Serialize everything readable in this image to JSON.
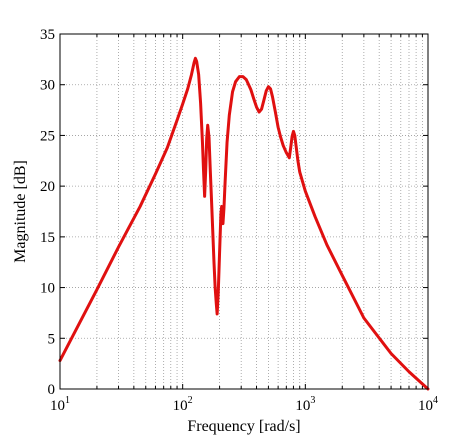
{
  "chart_data": {
    "type": "line",
    "title": "",
    "xlabel": "Frequency [rad/s]",
    "ylabel": "Magnitude [dB]",
    "xscale": "log",
    "xlim": [
      10,
      10000
    ],
    "ylim": [
      0,
      35
    ],
    "grid": true,
    "grid_style": "dotted",
    "x_ticks": [
      {
        "base": "10",
        "exp": "1"
      },
      {
        "base": "10",
        "exp": "2"
      },
      {
        "base": "10",
        "exp": "3"
      },
      {
        "base": "10",
        "exp": "4"
      }
    ],
    "y_ticks": [
      "0",
      "5",
      "10",
      "15",
      "20",
      "25",
      "30",
      "35"
    ],
    "series": [
      {
        "color": "#e01010",
        "x": [
          10,
          14,
          20,
          30,
          45,
          60,
          75,
          90,
          100,
          110,
          118,
          124,
          127,
          130,
          135,
          140,
          145,
          148,
          151,
          154,
          157,
          160,
          164,
          168,
          172,
          176,
          180,
          184,
          188,
          191,
          195,
          200,
          205,
          208,
          210,
          213,
          217,
          222,
          230,
          240,
          255,
          270,
          290,
          310,
          330,
          345,
          360,
          380,
          400,
          420,
          440,
          460,
          480,
          500,
          520,
          540,
          570,
          600,
          630,
          660,
          700,
          740,
          760,
          780,
          800,
          820,
          840,
          870,
          900,
          1000,
          1200,
          1500,
          2000,
          3000,
          5000,
          7000,
          10000
        ],
        "y": [
          2.8,
          6.2,
          9.8,
          14.0,
          18.0,
          21.2,
          23.8,
          26.5,
          28.1,
          29.6,
          31.0,
          32.2,
          32.6,
          32.3,
          31.0,
          28.2,
          24.3,
          21.5,
          19.0,
          21.5,
          24.7,
          26.0,
          24.8,
          21.5,
          18.5,
          15.5,
          12.5,
          10.0,
          8.4,
          7.4,
          9.5,
          13.5,
          17.3,
          18.0,
          17.0,
          16.3,
          17.8,
          20.5,
          24.3,
          27.0,
          29.3,
          30.3,
          30.8,
          30.8,
          30.5,
          30.0,
          29.5,
          28.6,
          27.8,
          27.3,
          27.6,
          28.5,
          29.4,
          29.8,
          29.6,
          28.8,
          27.3,
          25.8,
          24.8,
          24.0,
          23.3,
          22.8,
          23.8,
          24.9,
          25.4,
          25.0,
          24.0,
          22.5,
          21.4,
          19.5,
          17.0,
          14.2,
          11.2,
          7.0,
          3.5,
          1.7,
          0.0
        ]
      }
    ]
  }
}
